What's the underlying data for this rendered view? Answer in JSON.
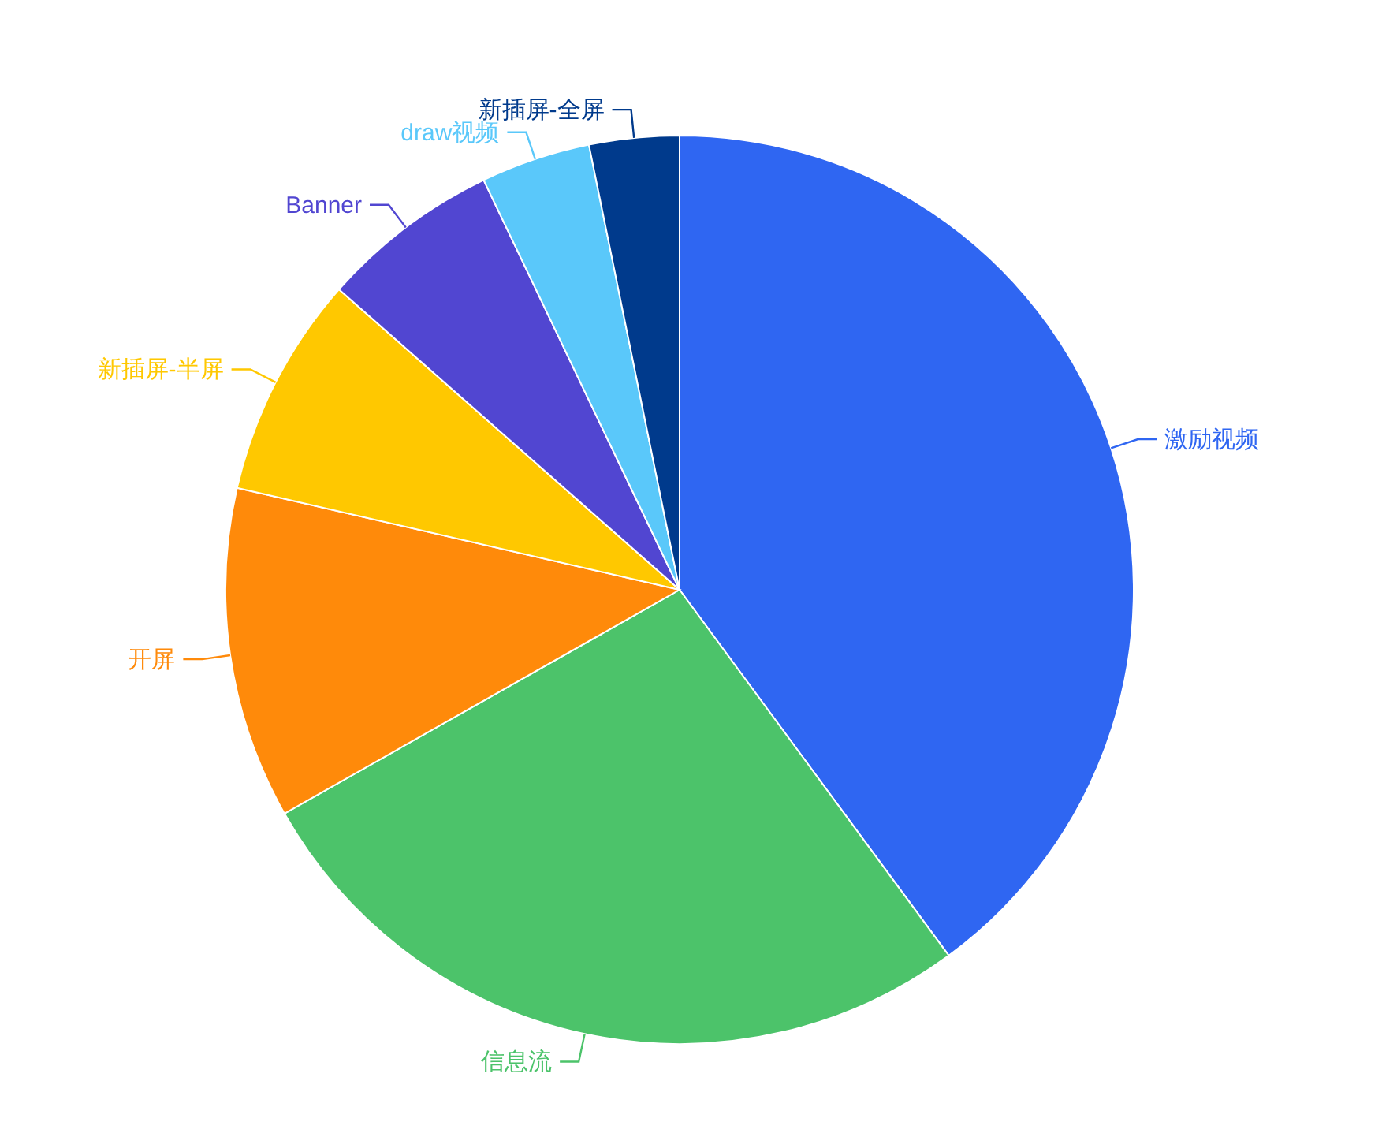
{
  "chart_data": {
    "type": "pie",
    "categories": [
      "激励视频",
      "信息流",
      "开屏",
      "新插屏-半屏",
      "Banner",
      "draw视频",
      "新插屏-全屏"
    ],
    "values": [
      39.9,
      26.9,
      11.8,
      7.9,
      6.4,
      3.9,
      3.2
    ],
    "colors": [
      "#2f66f2",
      "#4cc36a",
      "#ff8a0a",
      "#ffc800",
      "#5146d1",
      "#5ac8fa",
      "#003a8c"
    ]
  }
}
